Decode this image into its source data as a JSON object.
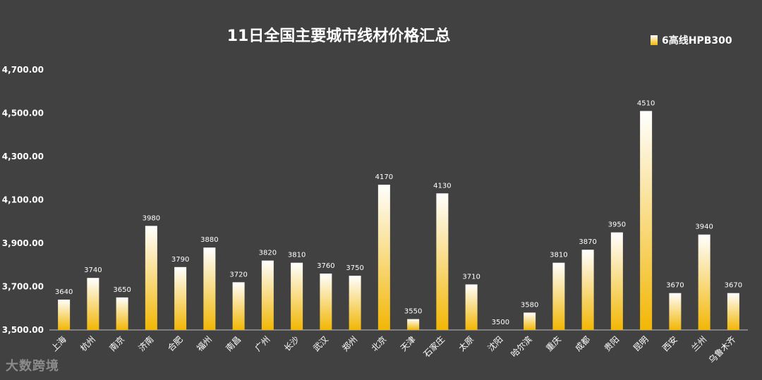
{
  "chart_data": {
    "type": "bar",
    "title": "11日全国主要城市线材价格汇总",
    "legend": {
      "placement": "top-right"
    },
    "series": [
      {
        "name": "6高线HPB300",
        "values": [
          3640,
          3740,
          3650,
          3980,
          3790,
          3880,
          3720,
          3820,
          3810,
          3760,
          3750,
          4170,
          3550,
          4130,
          3710,
          3500,
          3580,
          3810,
          3870,
          3950,
          4510,
          3670,
          3940,
          3670
        ]
      }
    ],
    "categories": [
      "上海",
      "杭州",
      "南京",
      "济南",
      "合肥",
      "福州",
      "南昌",
      "广州",
      "长沙",
      "武汉",
      "郑州",
      "北京",
      "天津",
      "石家庄",
      "太原",
      "沈阳",
      "哈尔滨",
      "重庆",
      "成都",
      "贵阳",
      "昆明",
      "西安",
      "兰州",
      "乌鲁木齐"
    ],
    "value_labels": [
      "3640",
      "3740",
      "3650",
      "3980",
      "3790",
      "3880",
      "3720",
      "3820",
      "3810",
      "3760",
      "3750",
      "4170",
      "3550",
      "4130",
      "3710",
      "3500",
      "3580",
      "3810",
      "3870",
      "3950",
      "4510",
      "3670",
      "3940",
      "3670"
    ],
    "ylim": [
      3500,
      4700
    ],
    "yticks": [
      3500,
      3700,
      3900,
      4100,
      4300,
      4500,
      4700
    ],
    "ytick_labels": [
      "3,500.00",
      "3,700.00",
      "3,900.00",
      "4,100.00",
      "4,300.00",
      "4,500.00",
      "4,700.00"
    ],
    "grid": false,
    "xlabel": "",
    "ylabel": "",
    "colors": {
      "background": "#414141",
      "bar_top": "#ffffff",
      "bar_bottom": "#f2b705",
      "text": "#ffffff",
      "axis": "#bfbfbf"
    }
  },
  "watermark": {
    "text": "大数跨境"
  }
}
